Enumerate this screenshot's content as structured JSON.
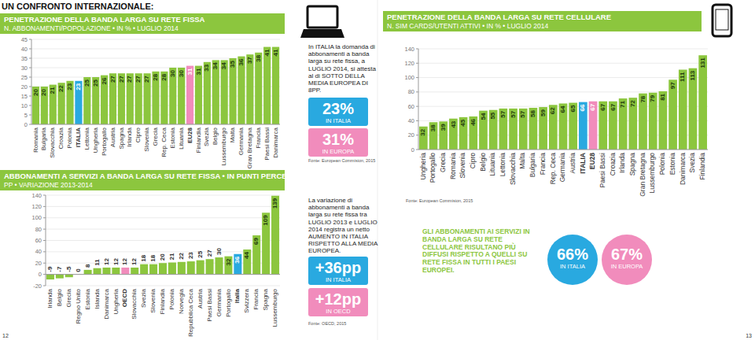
{
  "page": {
    "header": "UN CONFRONTO INTERNAZIONALE:",
    "page_numbers": [
      "12",
      "13"
    ]
  },
  "chart_data": [
    {
      "type": "bar",
      "title": "PENETRAZIONE DELLA BANDA LARGA SU RETE FISSA",
      "subtitle": "N. ABBONAMENTI/POPOLAZIONE • IN % • LUGLIO 2014",
      "categories": [
        "Romania",
        "Bulgaria",
        "Slovacchia",
        "Croazia",
        "Polonia",
        "ITALIA",
        "Lettonia",
        "Ungheria",
        "Portogallo",
        "Austria",
        "Spagna",
        "Irlanda",
        "Cipro",
        "Slovenia",
        "Grecia",
        "Rep. Ceca",
        "Estonia",
        "Lituania",
        "EU28",
        "Finlandia",
        "Svezia",
        "Belgio",
        "Lussemburgo",
        "Malta",
        "Germania",
        "Gran Bretagna",
        "Francia",
        "Paesi Bassi",
        "Danimarca"
      ],
      "values": [
        20,
        20,
        21,
        22,
        23,
        23,
        25,
        25,
        26,
        27,
        27,
        27,
        27,
        27,
        28,
        28,
        30,
        30,
        31,
        31,
        33,
        34,
        34,
        35,
        36,
        37,
        38,
        41,
        41
      ],
      "color": "#8cc63e",
      "colors": [
        "#8cc63e",
        "#8cc63e",
        "#8cc63e",
        "#8cc63e",
        "#8cc63e",
        "#29a9e0",
        "#8cc63e",
        "#8cc63e",
        "#8cc63e",
        "#8cc63e",
        "#8cc63e",
        "#8cc63e",
        "#8cc63e",
        "#8cc63e",
        "#8cc63e",
        "#8cc63e",
        "#8cc63e",
        "#8cc63e",
        "#f18cbc",
        "#8cc63e",
        "#8cc63e",
        "#8cc63e",
        "#8cc63e",
        "#8cc63e",
        "#8cc63e",
        "#8cc63e",
        "#8cc63e",
        "#8cc63e",
        "#8cc63e"
      ],
      "ylim": [
        0,
        45
      ],
      "yticks": [
        0,
        5,
        10,
        15,
        20,
        25,
        30,
        35,
        40,
        45
      ],
      "grid": true,
      "data_labels": true,
      "annotations": {
        "note": "In ITALIA la domanda di abbonamenti a banda larga su rete fissa, a LUGLIO 2014, si attesta al di SOTTO DELLA MEDIA EUROPEA DI 8PP.",
        "highlights": [
          {
            "value": "23%",
            "label": "IN ITALIA"
          },
          {
            "value": "31%",
            "label": "IN EUROPA"
          }
        ],
        "source": "Fonte: European Commision, 2015"
      }
    },
    {
      "type": "bar",
      "title": "ABBONAMENTI A SERVIZI A BANDA LARGA SU RETE FISSA • IN PUNTI PERCENTUALI",
      "subtitle": "PP • VARIAZIONE 2013-2014",
      "categories": [
        "Irlanda",
        "Belgio",
        "Grecia",
        "Regno Unito",
        "Estonia",
        "Islanda",
        "Danimarca",
        "Ungheria",
        "OECD",
        "Slovacchia",
        "Svezia",
        "Slovenia",
        "Finlandia",
        "Polonia",
        "Norvegia",
        "Repubblica Ceca",
        "Austria",
        "Paesi Bassi",
        "Germania",
        "Portogallo",
        "Italia",
        "Svizzera",
        "Francia",
        "Spagna",
        "Lussemburgo"
      ],
      "values": [
        -9,
        -7,
        -5,
        0,
        8,
        11,
        12,
        12,
        12,
        12,
        18,
        18,
        20,
        21,
        22,
        23,
        25,
        27,
        30,
        32,
        36,
        44,
        69,
        109,
        139
      ],
      "color": "#8cc63e",
      "colors": [
        "#8cc63e",
        "#8cc63e",
        "#8cc63e",
        "#8cc63e",
        "#8cc63e",
        "#8cc63e",
        "#8cc63e",
        "#8cc63e",
        "#f18cbc",
        "#8cc63e",
        "#8cc63e",
        "#8cc63e",
        "#8cc63e",
        "#8cc63e",
        "#8cc63e",
        "#8cc63e",
        "#8cc63e",
        "#8cc63e",
        "#8cc63e",
        "#8cc63e",
        "#29a9e0",
        "#8cc63e",
        "#8cc63e",
        "#8cc63e",
        "#8cc63e"
      ],
      "ylim": [
        -20,
        140
      ],
      "yticks": [
        -20,
        0,
        20,
        40,
        60,
        80,
        100,
        120,
        140
      ],
      "grid": true,
      "data_labels": true,
      "annotations": {
        "note": "La variazione di abbonamenti a banda larga su rete fissa tra LUGLIO 2013 e LUGLIO 2014 registra un netto AUMENTO IN ITALIA RISPETTO ALLA MEDIA EUROPEA.",
        "highlights": [
          {
            "value": "+36pp",
            "label": "IN ITALIA"
          },
          {
            "value": "+12pp",
            "label": "IN OECD"
          }
        ],
        "source": "Fonte: OECD, 2015"
      }
    },
    {
      "type": "bar",
      "title": "PENETRAZIONE DELLA BANDA LARGA SU RETE CELLULARE",
      "subtitle": "N. SIM CARDS/UTENTI ATTIVI • IN % • LUGLIO 2014",
      "categories": [
        "Ungheria",
        "Portogallo",
        "Grecia",
        "Romania",
        "Slovenia",
        "Cipro",
        "Belgio",
        "Lituania",
        "Lettonia",
        "Slovacchia",
        "Malta",
        "Bulgaria",
        "Francia",
        "Rep. Ceca",
        "Germania",
        "Austria",
        "ITALIA",
        "EU28",
        "Paesi Bassi",
        "Croazia",
        "Irlanda",
        "Spagna",
        "Gran Bretagna",
        "Lussemburgo",
        "Polonia",
        "Estonia",
        "Danimarca",
        "Svezia",
        "Finlandia"
      ],
      "values": [
        32,
        38,
        39,
        43,
        45,
        46,
        54,
        55,
        57,
        57,
        57,
        58,
        59,
        62,
        64,
        65,
        66,
        67,
        67,
        67,
        71,
        72,
        78,
        79,
        81,
        97,
        111,
        113,
        131
      ],
      "color": "#8cc63e",
      "colors": [
        "#8cc63e",
        "#8cc63e",
        "#8cc63e",
        "#8cc63e",
        "#8cc63e",
        "#8cc63e",
        "#8cc63e",
        "#8cc63e",
        "#8cc63e",
        "#8cc63e",
        "#8cc63e",
        "#8cc63e",
        "#8cc63e",
        "#8cc63e",
        "#8cc63e",
        "#8cc63e",
        "#29a9e0",
        "#f18cbc",
        "#8cc63e",
        "#8cc63e",
        "#8cc63e",
        "#8cc63e",
        "#8cc63e",
        "#8cc63e",
        "#8cc63e",
        "#8cc63e",
        "#8cc63e",
        "#8cc63e",
        "#8cc63e"
      ],
      "ylim": [
        0,
        140
      ],
      "yticks": [
        0,
        20,
        40,
        60,
        80,
        100,
        120,
        140
      ],
      "grid": true,
      "data_labels": true,
      "annotations": {
        "note": "GLI ABBONAMENTI AI SERVIZI IN BANDA LARGA SU RETE CELLULARE RISULTANO PIÙ DIFFUSI RISPETTO A QUELLI SU RETE FISSA IN TUTTI I PAESI EUROPEI.",
        "highlights": [
          {
            "value": "66%",
            "label": "IN ITALIA"
          },
          {
            "value": "67%",
            "label": "IN EUROPA"
          }
        ],
        "source": "Fonte: European Commision, 2015"
      }
    }
  ]
}
